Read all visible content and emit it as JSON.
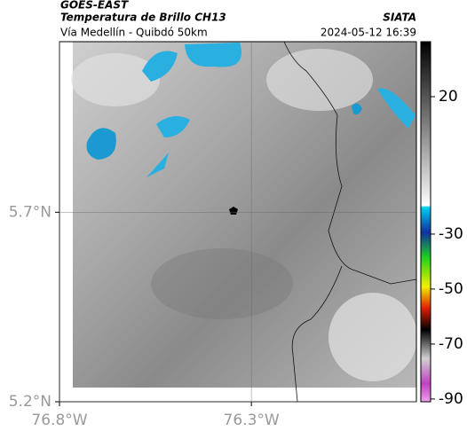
{
  "header": {
    "satellite": "GOES-EAST",
    "title": "Temperatura de Brillo CH13",
    "subtitle": "Vía Medellín - Quibdó 50km",
    "source": "SIATA",
    "datetime": "2024-05-12 16:39"
  },
  "map": {
    "xlim": [
      -76.8,
      -75.87
    ],
    "ylim": [
      5.2,
      6.15
    ],
    "xticks": [
      {
        "value": -76.8,
        "label": "76.8°W"
      },
      {
        "value": -76.3,
        "label": "76.3°W"
      }
    ],
    "yticks": [
      {
        "value": 5.7,
        "label": "5.7°N"
      },
      {
        "value": 5.2,
        "label": "5.2°N"
      }
    ]
  },
  "colorbar": {
    "lim": [
      -91,
      40
    ],
    "ticks": [
      20,
      -30,
      -50,
      -70,
      -90
    ]
  }
}
